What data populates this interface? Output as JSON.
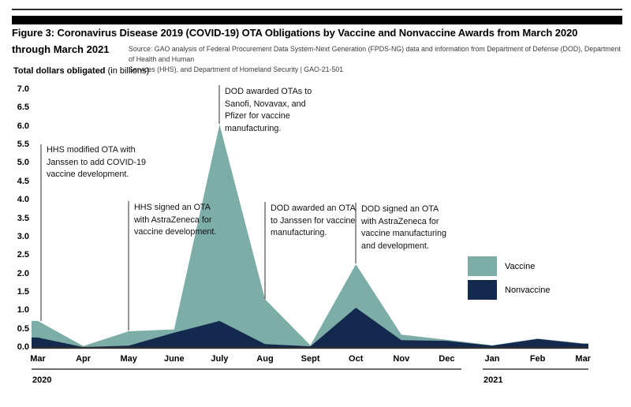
{
  "header": {
    "title_line1": "Figure 3: Coronavirus Disease 2019 (COVID-19) OTA Obligations by Vaccine and Nonvaccine Awards from March 2020",
    "title_line2": "through March 2021",
    "source_line1": "Source: GAO analysis of Federal Procurement Data System-Next Generation (FPDS-NG) data and information from Department of Defense (DOD), Department of Health and Human",
    "source_line2": "Services (HHS), and Department of Homeland Security | GAO-21-501"
  },
  "chart_data": {
    "type": "area",
    "stacked": true,
    "title": "Figure 3: Coronavirus Disease 2019 (COVID-19) OTA Obligations by Vaccine and Nonvaccine Awards from March 2020 through March 2021",
    "ylabel_bold": "Total dollars obligated",
    "ylabel_note": " (in billions)",
    "ylim": [
      0,
      7
    ],
    "ytick_step": 0.5,
    "yticks": [
      "7.0",
      "6.5",
      "6.0",
      "5.5",
      "5.0",
      "4.5",
      "4.0",
      "3.5",
      "3.0",
      "2.5",
      "2.0",
      "1.5",
      "1.0",
      "0.5",
      "0.0"
    ],
    "categories": [
      "Mar",
      "Apr",
      "May",
      "June",
      "July",
      "Aug",
      "Sept",
      "Oct",
      "Nov",
      "Dec",
      "Jan",
      "Feb",
      "Mar"
    ],
    "x_groups": [
      {
        "year": "2020",
        "from": 0,
        "to": 9
      },
      {
        "year": "2021",
        "from": 10,
        "to": 12
      }
    ],
    "grid": false,
    "legend_position": "right-middle",
    "series": [
      {
        "name": "Vaccine",
        "color": "#7DADA7",
        "values": [
          0.45,
          0.03,
          0.39,
          0.09,
          5.33,
          1.22,
          0.03,
          1.18,
          0.15,
          0.03,
          0.01,
          0.01,
          0.01
        ]
      },
      {
        "name": "Nonvaccine",
        "color": "#132A4E",
        "values": [
          0.28,
          0.02,
          0.06,
          0.41,
          0.73,
          0.1,
          0.04,
          1.09,
          0.21,
          0.19,
          0.06,
          0.24,
          0.11
        ]
      }
    ],
    "annotations": [
      {
        "anchor": "March 2020",
        "lines": [
          "HHS modified OTA with",
          "Janssen to add COVID-19",
          "vaccine development."
        ]
      },
      {
        "anchor": "May 2020",
        "lines": [
          "HHS signed an OTA",
          "with AstraZeneca for",
          "vaccine development."
        ]
      },
      {
        "anchor": "July 2020",
        "lines": [
          "DOD awarded OTAs to",
          "Sanofi, Novavax, and",
          "Pfizer for vaccine",
          "manufacturing."
        ]
      },
      {
        "anchor": "August 2020",
        "lines": [
          "DOD awarded an OTA",
          "to Janssen for vaccine",
          "manufacturing."
        ]
      },
      {
        "anchor": "October 2020",
        "lines": [
          "DOD signed an OTA",
          "with AstraZeneca for",
          "vaccine manufacturing",
          "and development."
        ]
      }
    ]
  }
}
